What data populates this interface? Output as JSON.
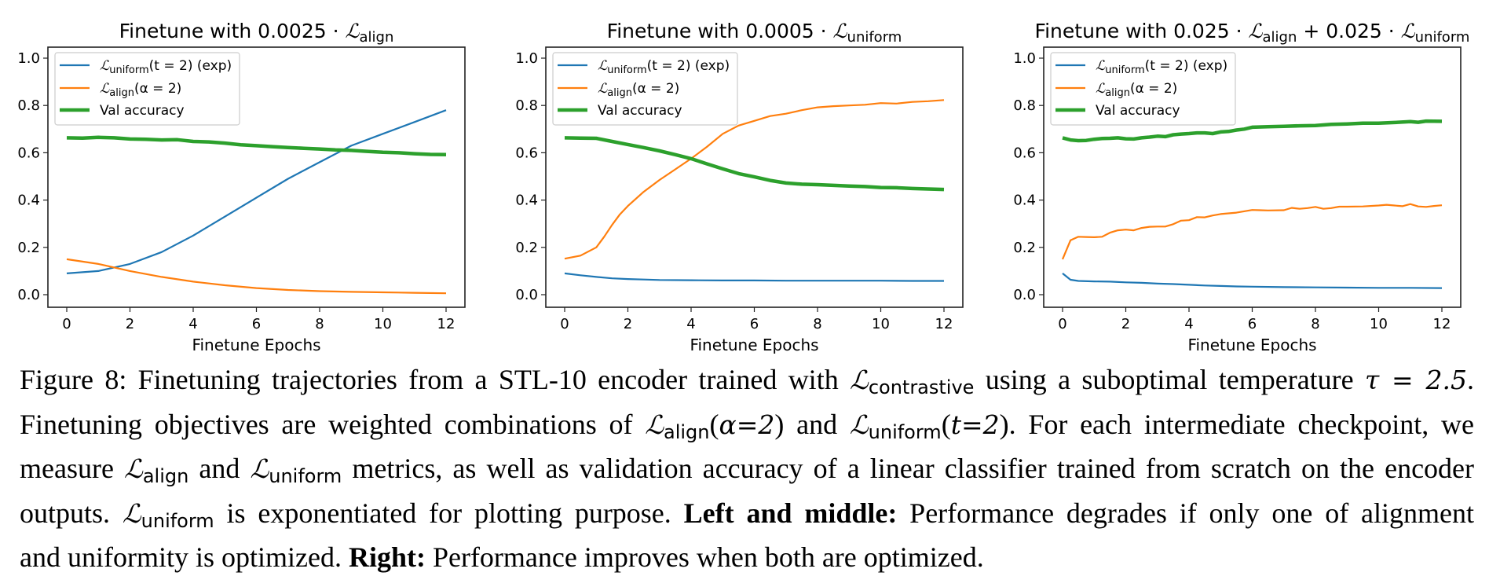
{
  "chart_data": [
    {
      "type": "line",
      "title": "Finetune with 0.0025 · ℒalign",
      "title_parts": {
        "prefix": "Finetune with 0.0025 · ",
        "terms": [
          {
            "symbol": "ℒ",
            "sub": "align"
          }
        ]
      },
      "xlabel": "Finetune Epochs",
      "ylabel": "",
      "xlim": [
        -0.6,
        12.6
      ],
      "ylim": [
        -0.05,
        1.05
      ],
      "xticks": [
        0,
        2,
        4,
        6,
        8,
        10,
        12
      ],
      "yticks": [
        "0.0",
        "0.2",
        "0.4",
        "0.6",
        "0.8",
        "1.0"
      ],
      "grid": false,
      "legend_position": "top-left",
      "series": [
        {
          "name": "ℒuniform(t = 2) (exp)",
          "legend_symbol": "ℒ",
          "legend_sub": "uniform",
          "legend_rest": "(t = 2) (exp)",
          "color": "#1f77b4",
          "width": "thin",
          "x": [
            0,
            1,
            2,
            3,
            4,
            5,
            6,
            7,
            8,
            9,
            10,
            11,
            12
          ],
          "y": [
            0.09,
            0.1,
            0.13,
            0.18,
            0.25,
            0.33,
            0.41,
            0.49,
            0.56,
            0.63,
            0.68,
            0.73,
            0.78
          ]
        },
        {
          "name": "ℒalign(α = 2)",
          "legend_symbol": "ℒ",
          "legend_sub": "align",
          "legend_rest": "(α = 2)",
          "color": "#ff7f0e",
          "width": "thin",
          "x": [
            0,
            1,
            2,
            3,
            4,
            5,
            6,
            7,
            8,
            9,
            10,
            11,
            12
          ],
          "y": [
            0.15,
            0.13,
            0.1,
            0.075,
            0.055,
            0.04,
            0.028,
            0.02,
            0.015,
            0.012,
            0.01,
            0.008,
            0.006
          ]
        },
        {
          "name": "Val accuracy",
          "legend_symbol": "",
          "legend_sub": "",
          "legend_rest": "Val accuracy",
          "color": "#2ca02c",
          "width": "thick",
          "x": [
            0,
            0.5,
            1,
            1.5,
            2,
            2.5,
            3,
            3.5,
            4,
            4.5,
            5,
            5.5,
            6,
            6.5,
            7,
            7.5,
            8,
            8.5,
            9,
            9.5,
            10,
            10.5,
            11,
            11.5,
            12
          ],
          "y": [
            0.663,
            0.662,
            0.665,
            0.663,
            0.658,
            0.657,
            0.654,
            0.655,
            0.648,
            0.646,
            0.641,
            0.634,
            0.63,
            0.626,
            0.622,
            0.619,
            0.616,
            0.612,
            0.61,
            0.606,
            0.602,
            0.6,
            0.596,
            0.593,
            0.592
          ]
        }
      ]
    },
    {
      "type": "line",
      "title": "Finetune with 0.0005 · ℒuniform",
      "title_parts": {
        "prefix": "Finetune with 0.0005 · ",
        "terms": [
          {
            "symbol": "ℒ",
            "sub": "uniform"
          }
        ]
      },
      "xlabel": "Finetune Epochs",
      "ylabel": "",
      "xlim": [
        -0.6,
        12.6
      ],
      "ylim": [
        -0.05,
        1.05
      ],
      "xticks": [
        0,
        2,
        4,
        6,
        8,
        10,
        12
      ],
      "yticks": [
        "0.0",
        "0.2",
        "0.4",
        "0.6",
        "0.8",
        "1.0"
      ],
      "grid": false,
      "legend_position": "top-left",
      "series": [
        {
          "name": "ℒuniform(t = 2) (exp)",
          "legend_symbol": "ℒ",
          "legend_sub": "uniform",
          "legend_rest": "(t = 2) (exp)",
          "color": "#1f77b4",
          "width": "thin",
          "x": [
            0,
            0.5,
            1,
            1.5,
            2,
            2.5,
            3,
            4,
            5,
            6,
            7,
            8,
            9,
            10,
            11,
            12
          ],
          "y": [
            0.09,
            0.082,
            0.075,
            0.069,
            0.066,
            0.064,
            0.062,
            0.061,
            0.06,
            0.06,
            0.059,
            0.059,
            0.059,
            0.059,
            0.058,
            0.058
          ]
        },
        {
          "name": "ℒalign(α = 2)",
          "legend_symbol": "ℒ",
          "legend_sub": "align",
          "legend_rest": "(α = 2)",
          "color": "#ff7f0e",
          "width": "thin",
          "x": [
            0,
            0.5,
            1,
            1.25,
            1.5,
            1.75,
            2,
            2.5,
            3,
            3.5,
            4,
            4.5,
            5,
            5.5,
            6,
            6.5,
            7,
            7.5,
            8,
            8.5,
            9,
            9.5,
            10,
            10.5,
            11,
            11.5,
            12
          ],
          "y": [
            0.152,
            0.165,
            0.2,
            0.245,
            0.295,
            0.34,
            0.375,
            0.435,
            0.485,
            0.53,
            0.575,
            0.625,
            0.68,
            0.715,
            0.735,
            0.755,
            0.765,
            0.78,
            0.792,
            0.797,
            0.8,
            0.803,
            0.81,
            0.808,
            0.815,
            0.818,
            0.823
          ]
        },
        {
          "name": "Val accuracy",
          "legend_symbol": "",
          "legend_sub": "",
          "legend_rest": "Val accuracy",
          "color": "#2ca02c",
          "width": "thick",
          "x": [
            0,
            0.5,
            1,
            1.5,
            2,
            2.5,
            3,
            3.5,
            4,
            4.5,
            5,
            5.5,
            6,
            6.5,
            7,
            7.5,
            8,
            8.5,
            9,
            9.5,
            10,
            10.5,
            11,
            11.5,
            12
          ],
          "y": [
            0.663,
            0.662,
            0.661,
            0.648,
            0.635,
            0.622,
            0.608,
            0.592,
            0.575,
            0.553,
            0.532,
            0.512,
            0.498,
            0.483,
            0.472,
            0.467,
            0.465,
            0.462,
            0.459,
            0.457,
            0.453,
            0.452,
            0.449,
            0.447,
            0.445
          ]
        }
      ]
    },
    {
      "type": "line",
      "title": "Finetune with 0.025 · ℒalign + 0.025 · ℒuniform",
      "title_parts": {
        "prefix": "Finetune with 0.025 · ",
        "terms": [
          {
            "symbol": "ℒ",
            "sub": "align",
            "after": " + 0.025 · "
          },
          {
            "symbol": "ℒ",
            "sub": "uniform"
          }
        ]
      },
      "xlabel": "Finetune Epochs",
      "ylabel": "",
      "xlim": [
        -0.6,
        12.6
      ],
      "ylim": [
        -0.05,
        1.05
      ],
      "xticks": [
        0,
        2,
        4,
        6,
        8,
        10,
        12
      ],
      "yticks": [
        "0.0",
        "0.2",
        "0.4",
        "0.6",
        "0.8",
        "1.0"
      ],
      "grid": false,
      "legend_position": "top-left",
      "series": [
        {
          "name": "ℒuniform(t = 2) (exp)",
          "legend_symbol": "ℒ",
          "legend_sub": "uniform",
          "legend_rest": "(t = 2) (exp)",
          "color": "#1f77b4",
          "width": "thin",
          "x": [
            0,
            0.25,
            0.5,
            1,
            1.5,
            2,
            2.5,
            3,
            3.5,
            4,
            4.5,
            5,
            5.5,
            6,
            7,
            8,
            9,
            10,
            11,
            12
          ],
          "y": [
            0.09,
            0.063,
            0.058,
            0.056,
            0.055,
            0.052,
            0.05,
            0.047,
            0.045,
            0.042,
            0.039,
            0.037,
            0.035,
            0.034,
            0.032,
            0.031,
            0.03,
            0.029,
            0.029,
            0.028
          ]
        },
        {
          "name": "ℒalign(α = 2)",
          "legend_symbol": "ℒ",
          "legend_sub": "align",
          "legend_rest": "(α = 2)",
          "color": "#ff7f0e",
          "width": "thin",
          "x": [
            0,
            0.25,
            0.5,
            0.75,
            1,
            1.25,
            1.5,
            1.75,
            2,
            2.25,
            2.5,
            2.75,
            3,
            3.25,
            3.5,
            3.75,
            4,
            4.25,
            4.5,
            4.75,
            5,
            5.5,
            6,
            6.25,
            6.5,
            7,
            7.25,
            7.5,
            7.75,
            8,
            8.25,
            8.5,
            8.75,
            9,
            9.5,
            10,
            10.25,
            10.5,
            10.75,
            11,
            11.25,
            11.5,
            11.75,
            12
          ],
          "y": [
            0.15,
            0.23,
            0.245,
            0.244,
            0.243,
            0.245,
            0.262,
            0.272,
            0.275,
            0.272,
            0.282,
            0.287,
            0.288,
            0.288,
            0.298,
            0.313,
            0.315,
            0.328,
            0.327,
            0.335,
            0.341,
            0.347,
            0.358,
            0.357,
            0.356,
            0.357,
            0.367,
            0.363,
            0.366,
            0.371,
            0.363,
            0.366,
            0.372,
            0.372,
            0.373,
            0.377,
            0.38,
            0.377,
            0.374,
            0.383,
            0.373,
            0.371,
            0.375,
            0.378
          ]
        },
        {
          "name": "Val accuracy",
          "legend_symbol": "",
          "legend_sub": "",
          "legend_rest": "Val accuracy",
          "color": "#2ca02c",
          "width": "thick",
          "x": [
            0,
            0.25,
            0.5,
            0.75,
            1,
            1.25,
            1.5,
            1.75,
            2,
            2.25,
            2.5,
            2.75,
            3,
            3.25,
            3.5,
            3.75,
            4,
            4.25,
            4.5,
            4.75,
            5,
            5.25,
            5.5,
            5.75,
            6,
            6.5,
            7,
            7.5,
            8,
            8.5,
            9,
            9.5,
            10,
            10.5,
            11,
            11.25,
            11.5,
            12
          ],
          "y": [
            0.663,
            0.654,
            0.651,
            0.652,
            0.657,
            0.66,
            0.661,
            0.663,
            0.659,
            0.658,
            0.663,
            0.666,
            0.67,
            0.668,
            0.676,
            0.679,
            0.681,
            0.684,
            0.684,
            0.681,
            0.688,
            0.69,
            0.696,
            0.7,
            0.708,
            0.71,
            0.712,
            0.714,
            0.715,
            0.72,
            0.722,
            0.725,
            0.725,
            0.728,
            0.732,
            0.729,
            0.734,
            0.733
          ]
        }
      ]
    }
  ],
  "caption": {
    "lines": [
      [
        {
          "t": "Figure 8: Finetuning trajectories from a STL-10 encoder trained with "
        },
        {
          "m": "ℒ",
          "s": "contrastive"
        },
        {
          "t": " using a suboptimal temperature "
        },
        {
          "mi": "τ = 2.5"
        },
        {
          "t": "."
        }
      ],
      [
        {
          "t": "Finetuning objectives are weighted combinations of "
        },
        {
          "m": "ℒ",
          "s": "align"
        },
        {
          "t": "("
        },
        {
          "mi": "α=2"
        },
        {
          "t": ") and "
        },
        {
          "m": "ℒ",
          "s": "uniform"
        },
        {
          "t": "("
        },
        {
          "mi": "t=2"
        },
        {
          "t": "). For each intermediate checkpoint, we"
        }
      ],
      [
        {
          "t": "measure "
        },
        {
          "m": "ℒ",
          "s": "align"
        },
        {
          "t": " and "
        },
        {
          "m": "ℒ",
          "s": "uniform"
        },
        {
          "t": " metrics, as well as validation accuracy of a linear classifier trained from scratch on the encoder"
        }
      ],
      [
        {
          "t": "outputs. "
        },
        {
          "m": "ℒ",
          "s": "uniform"
        },
        {
          "t": " is exponentiated for plotting purpose. "
        },
        {
          "b": "Left and middle:"
        },
        {
          "t": " Performance degrades if only one of alignment"
        }
      ],
      [
        {
          "t": "and uniformity is optimized. "
        },
        {
          "b": "Right:"
        },
        {
          "t": " Performance improves when both are optimized."
        }
      ]
    ]
  }
}
